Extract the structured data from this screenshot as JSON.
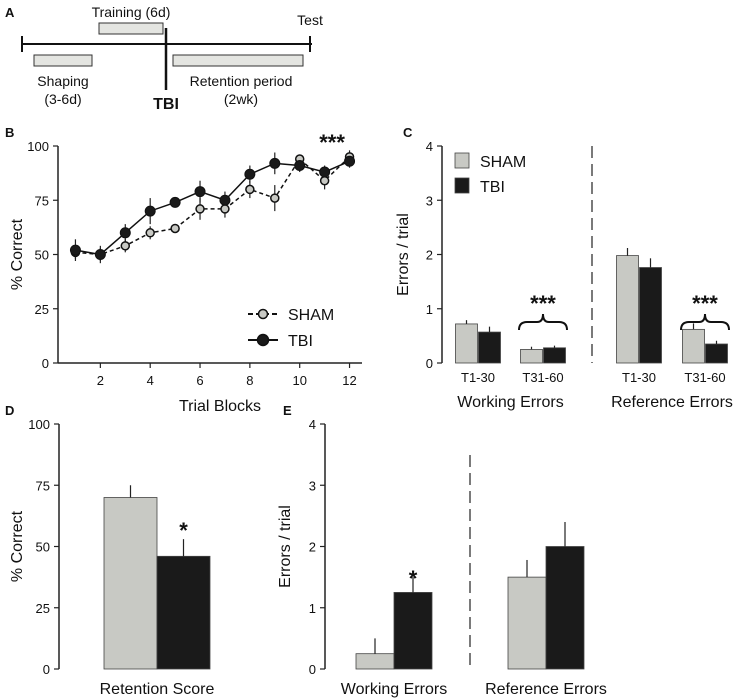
{
  "panels": {
    "A": {
      "letter": "A",
      "timeline": {
        "training": "Training (6d)",
        "test": "Test",
        "shaping_line1": "Shaping",
        "shaping_line2": "(3-6d)",
        "tbi": "TBI",
        "retention_line1": "Retention period",
        "retention_line2": "(2wk)"
      }
    },
    "B": {
      "letter": "B"
    },
    "C": {
      "letter": "C"
    },
    "D": {
      "letter": "D"
    },
    "E": {
      "letter": "E"
    }
  },
  "colors": {
    "sham": "#c8c9c4",
    "tbi": "#1a1a1a",
    "axis": "#222222"
  },
  "chart_data": [
    {
      "id": "B",
      "type": "line",
      "title": "",
      "xlabel": "Trial Blocks",
      "ylabel": "% Correct",
      "xlim": [
        0.3,
        12.5
      ],
      "ylim": [
        0,
        100
      ],
      "xticks": [
        2,
        4,
        6,
        8,
        10,
        12
      ],
      "yticks": [
        0,
        25,
        50,
        75,
        100
      ],
      "x": [
        1,
        2,
        3,
        4,
        5,
        6,
        7,
        8,
        9,
        10,
        11,
        12
      ],
      "series": [
        {
          "name": "SHAM",
          "values": [
            51,
            50,
            54,
            60,
            62,
            71,
            71,
            80,
            76,
            94,
            84,
            95
          ],
          "errors": [
            3,
            3,
            3,
            3,
            2,
            5,
            4,
            4,
            6,
            2,
            4,
            3
          ],
          "style": "dashed",
          "marker": "open-gray"
        },
        {
          "name": "TBI",
          "values": [
            52,
            50,
            60,
            70,
            74,
            79,
            75,
            87,
            92,
            91,
            88,
            93
          ],
          "errors": [
            5,
            4,
            4,
            6,
            2,
            5,
            4,
            4,
            5,
            3,
            3,
            3
          ],
          "style": "solid",
          "marker": "filled-black"
        }
      ],
      "legend": [
        "SHAM",
        "TBI"
      ],
      "annotations": [
        {
          "text": "***",
          "x": 11.3
        }
      ]
    },
    {
      "id": "C",
      "type": "bar",
      "xlabel": "",
      "ylabel": "Errors / trial",
      "ylim": [
        0,
        4
      ],
      "yticks": [
        0,
        1,
        2,
        3,
        4
      ],
      "categories": [
        "T1-30",
        "T31-60",
        "T1-30",
        "T31-60"
      ],
      "groups": [
        "Working Errors",
        "Reference Errors"
      ],
      "series": [
        {
          "name": "SHAM",
          "values": [
            0.72,
            0.25,
            1.98,
            0.62
          ],
          "errors": [
            0.07,
            0.05,
            0.14,
            0.11
          ]
        },
        {
          "name": "TBI",
          "values": [
            0.57,
            0.28,
            1.76,
            0.35
          ],
          "errors": [
            0.1,
            0.04,
            0.17,
            0.06
          ]
        }
      ],
      "legend": [
        "SHAM",
        "TBI"
      ],
      "annotations": [
        {
          "text": "***",
          "category": 1
        },
        {
          "text": "***",
          "category": 3
        }
      ]
    },
    {
      "id": "D",
      "type": "bar",
      "xlabel": "",
      "ylabel": "% Correct",
      "ylim": [
        0,
        100
      ],
      "yticks": [
        0,
        25,
        50,
        75,
        100
      ],
      "categories": [
        "Retention Score"
      ],
      "series": [
        {
          "name": "SHAM",
          "values": [
            70
          ],
          "errors": [
            5
          ]
        },
        {
          "name": "TBI",
          "values": [
            46
          ],
          "errors": [
            7
          ]
        }
      ],
      "annotations": [
        {
          "text": "*",
          "category": 0
        }
      ]
    },
    {
      "id": "E",
      "type": "bar",
      "xlabel": "",
      "ylabel": "Errors / trial",
      "ylim": [
        0,
        4
      ],
      "yticks": [
        0,
        1,
        2,
        3,
        4
      ],
      "categories": [
        "Working Errors",
        "Reference Errors"
      ],
      "series": [
        {
          "name": "SHAM",
          "values": [
            0.25,
            1.5
          ],
          "errors": [
            0.25,
            0.28
          ]
        },
        {
          "name": "TBI",
          "values": [
            1.25,
            2.0
          ],
          "errors": [
            0.25,
            0.4
          ]
        }
      ],
      "annotations": [
        {
          "text": "*",
          "category": 0
        }
      ]
    }
  ]
}
